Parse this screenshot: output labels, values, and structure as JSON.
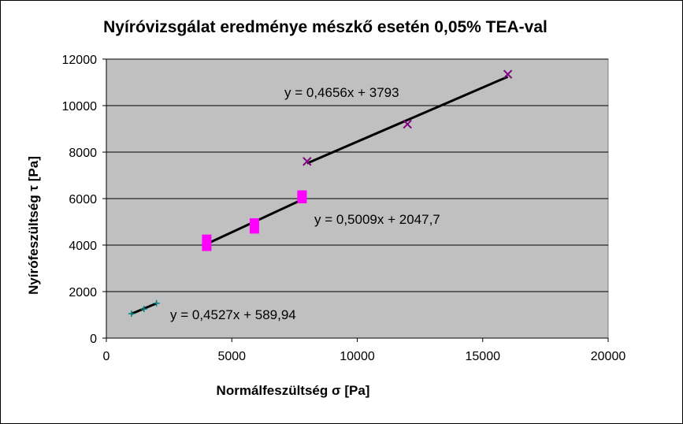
{
  "chart_data": {
    "type": "scatter",
    "title": "Nyíróvizsgálat eredménye mészkő esetén 0,05%  TEA-val",
    "xlabel": "Normálfeszültség σ [Pa]",
    "ylabel": "Nyírófeszültség τ [Pa]",
    "xlim": [
      0,
      20000
    ],
    "ylim": [
      0,
      12000
    ],
    "x_ticks": [
      0,
      5000,
      10000,
      15000,
      20000
    ],
    "y_ticks": [
      0,
      2000,
      4000,
      6000,
      8000,
      10000,
      12000
    ],
    "x_tick_labels": [
      "0",
      "5000",
      "10000",
      "15000",
      "20000"
    ],
    "y_tick_labels": [
      "0",
      "2000",
      "4000",
      "6000",
      "8000",
      "10000",
      "12000"
    ],
    "grid": "horizontal",
    "plot_background": "#c0c0c0",
    "series": [
      {
        "marker": "plus",
        "color": "#008080",
        "x": [
          1000,
          1500,
          2000
        ],
        "y": [
          1050,
          1250,
          1500
        ],
        "trendline": {
          "slope": 0.4527,
          "intercept": 589.94,
          "x_range": [
            1000,
            2000
          ],
          "equation": "y = 0,4527x + 589,94"
        }
      },
      {
        "marker": "square",
        "color": "#ff00ff",
        "x": [
          4000,
          4000,
          5900,
          5900,
          7800,
          7800
        ],
        "y": [
          3950,
          4250,
          4700,
          4950,
          6000,
          6150
        ],
        "trendline": {
          "slope": 0.5009,
          "intercept": 2047.7,
          "x_range": [
            4000,
            7850
          ],
          "equation": "y = 0,5009x + 2047,7"
        }
      },
      {
        "marker": "x",
        "color": "#800080",
        "x": [
          8000,
          12000,
          16000
        ],
        "y": [
          7600,
          9200,
          11350
        ],
        "trendline": {
          "slope": 0.4656,
          "intercept": 3793,
          "x_range": [
            8000,
            16000
          ],
          "equation": "y = 0,4656x + 3793"
        }
      }
    ]
  }
}
